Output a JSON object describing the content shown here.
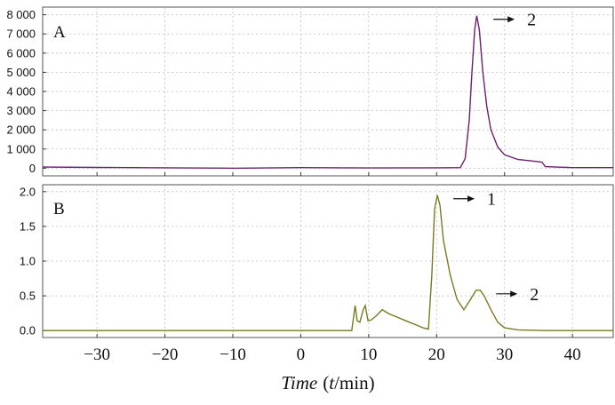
{
  "chart_data": [
    {
      "type": "line",
      "panel_label": "A",
      "color": "#6b1f6b",
      "xlim": [
        -38,
        46
      ],
      "ylim": [
        -400,
        8400
      ],
      "yticks": [
        0,
        1000,
        2000,
        3000,
        4000,
        5000,
        6000,
        7000,
        8000
      ],
      "ytick_labels": [
        "0",
        "1 000",
        "2 000",
        "3 000",
        "4 000",
        "5 000",
        "6 000",
        "7 000",
        "8 000"
      ],
      "grid": true,
      "series": [
        {
          "name": "A",
          "x": [
            -38,
            -30,
            -20,
            -10,
            0,
            10,
            20,
            23.5,
            24.2,
            24.8,
            25.2,
            25.6,
            25.9,
            26.3,
            26.8,
            27.4,
            28,
            29,
            30,
            32,
            34,
            35.5,
            36,
            40,
            46
          ],
          "y": [
            60,
            40,
            20,
            0,
            30,
            10,
            20,
            30,
            500,
            2500,
            5000,
            7200,
            7950,
            7200,
            5000,
            3200,
            2000,
            1100,
            700,
            450,
            380,
            320,
            80,
            30,
            30
          ]
        }
      ],
      "annotations": [
        {
          "text": "2",
          "x": 26,
          "y": 7950
        }
      ]
    },
    {
      "type": "line",
      "panel_label": "B",
      "color": "#7a7a22",
      "xlim": [
        -38,
        46
      ],
      "ylim": [
        -0.1,
        2.1
      ],
      "yticks": [
        0.0,
        0.5,
        1.0,
        1.5,
        2.0
      ],
      "ytick_labels": [
        "0.0",
        "0.5",
        "1.0",
        "1.5",
        "2.0"
      ],
      "xticks": [
        -30,
        -20,
        -10,
        0,
        10,
        20,
        30,
        40
      ],
      "xtick_labels": [
        "−30",
        "−20",
        "−10",
        "0",
        "10",
        "20",
        "30",
        "40"
      ],
      "grid": true,
      "series": [
        {
          "name": "B",
          "x": [
            -38,
            0,
            7.5,
            8,
            8.3,
            8.7,
            9.2,
            9.5,
            9.9,
            10.3,
            11,
            12,
            12.5,
            13,
            14,
            15,
            16,
            17,
            18,
            18.8,
            19.3,
            19.7,
            20.1,
            20.5,
            21,
            22,
            23,
            24,
            25,
            25.8,
            26.4,
            27,
            28,
            29,
            30,
            32,
            36,
            40,
            46
          ],
          "y": [
            0.0,
            0.0,
            0.0,
            0.36,
            0.14,
            0.12,
            0.3,
            0.36,
            0.14,
            0.15,
            0.2,
            0.3,
            0.27,
            0.24,
            0.2,
            0.16,
            0.12,
            0.08,
            0.04,
            0.02,
            0.8,
            1.75,
            1.95,
            1.8,
            1.3,
            0.8,
            0.45,
            0.3,
            0.45,
            0.58,
            0.58,
            0.5,
            0.3,
            0.12,
            0.04,
            0.01,
            0.0,
            0.0,
            0.0
          ]
        }
      ],
      "annotations": [
        {
          "text": "1",
          "x": 20.1,
          "y": 1.95
        },
        {
          "text": "2",
          "x": 26.4,
          "y": 0.58
        }
      ]
    }
  ],
  "xaxis": {
    "label_word": "Time",
    "label_open": "(",
    "label_var": "t",
    "label_unit": "/min)"
  }
}
